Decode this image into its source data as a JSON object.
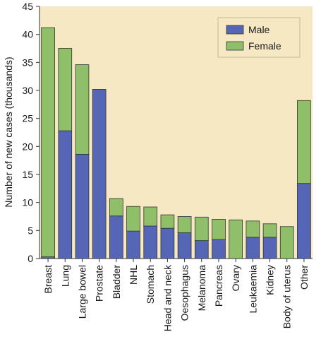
{
  "chart_data": {
    "type": "bar",
    "stacked": true,
    "title": "",
    "xlabel": "",
    "ylabel": "Number of new cases (thousands)",
    "ylim": [
      0,
      45
    ],
    "yticks": [
      0,
      5,
      10,
      15,
      20,
      25,
      30,
      35,
      40,
      45
    ],
    "grid": false,
    "legend_position": "top-right",
    "categories": [
      "Breast",
      "Lung",
      "Large bowel",
      "Prostate",
      "Bladder",
      "NHL",
      "Stomach",
      "Head and neck",
      "Oesophagus",
      "Melanoma",
      "Pancreas",
      "Ovary",
      "Leukaemia",
      "Kidney",
      "Body of uterus",
      "Other"
    ],
    "series": [
      {
        "name": "Male",
        "color": "#5466b5",
        "values": [
          0.3,
          22.8,
          18.6,
          30.2,
          7.6,
          4.9,
          5.8,
          5.4,
          4.6,
          3.2,
          3.4,
          0,
          3.8,
          3.8,
          0,
          13.4
        ]
      },
      {
        "name": "Female",
        "color": "#8fc069",
        "values": [
          40.9,
          14.7,
          16.0,
          0,
          3.1,
          4.4,
          3.4,
          2.4,
          2.9,
          4.2,
          3.6,
          6.9,
          2.9,
          2.4,
          5.7,
          14.8
        ]
      }
    ],
    "plot_background": "#f7e8c4",
    "edge_color": "#333333"
  }
}
